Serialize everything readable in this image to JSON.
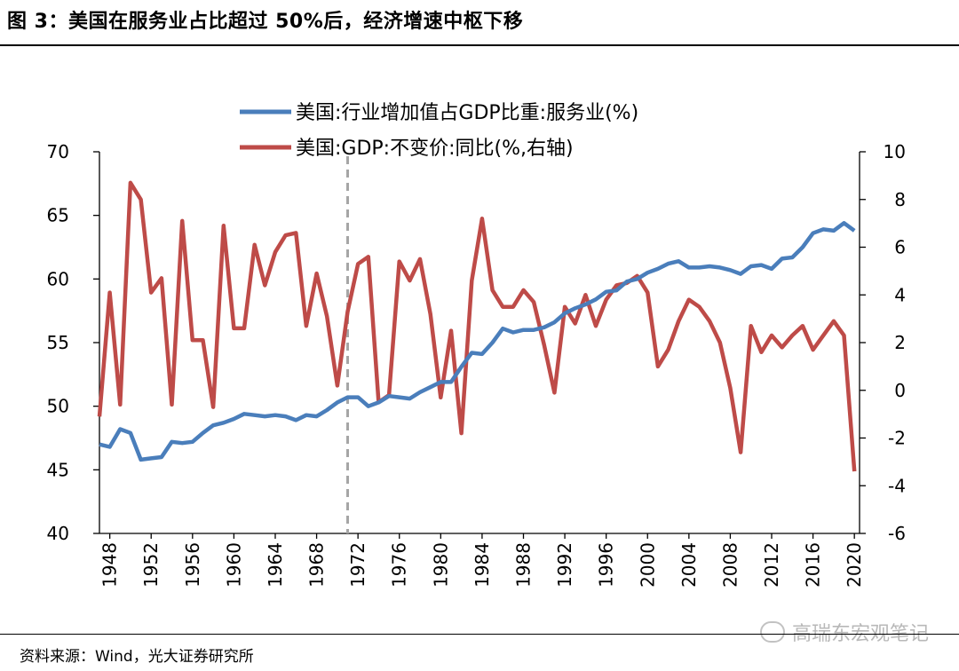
{
  "title": "图 3：美国在服务业占比超过 50%后，经济增速中枢下移",
  "source": "资料来源：Wind，光大证券研究所",
  "watermark": "高瑞东宏观笔记",
  "colors": {
    "services": "#4a7ebb",
    "gdp": "#be4b48",
    "marker": "#a6a6a6"
  },
  "chart_data": {
    "type": "line",
    "legend": [
      "美国:行业增加值占GDP比重:服务业(%)",
      "美国:GDP:不变价:同比(%,右轴)"
    ],
    "legend_position": "top",
    "x_ticks": [
      "1948",
      "1952",
      "1956",
      "1960",
      "1964",
      "1968",
      "1972",
      "1976",
      "1980",
      "1984",
      "1988",
      "1992",
      "1996",
      "2000",
      "2004",
      "2008",
      "2012",
      "2016",
      "2020"
    ],
    "y_left": {
      "range": [
        40,
        70
      ],
      "ticks": [
        "40",
        "45",
        "50",
        "55",
        "60",
        "65",
        "70"
      ]
    },
    "y_right": {
      "range": [
        -6,
        10
      ],
      "ticks": [
        "-6",
        "-4",
        "-2",
        "0",
        "2",
        "4",
        "6",
        "8",
        "10"
      ]
    },
    "reference_line_year": 1971,
    "x": [
      1947,
      1948,
      1949,
      1950,
      1951,
      1952,
      1953,
      1954,
      1955,
      1956,
      1957,
      1958,
      1959,
      1960,
      1961,
      1962,
      1963,
      1964,
      1965,
      1966,
      1967,
      1968,
      1969,
      1970,
      1971,
      1972,
      1973,
      1974,
      1975,
      1976,
      1977,
      1978,
      1979,
      1980,
      1981,
      1982,
      1983,
      1984,
      1985,
      1986,
      1987,
      1988,
      1989,
      1990,
      1991,
      1992,
      1993,
      1994,
      1995,
      1996,
      1997,
      1998,
      1999,
      2000,
      2001,
      2002,
      2003,
      2004,
      2005,
      2006,
      2007,
      2008,
      2009,
      2010,
      2011,
      2012,
      2013,
      2014,
      2015,
      2016,
      2017,
      2018,
      2019,
      2020
    ],
    "series": [
      {
        "name": "美国:行业增加值占GDP比重:服务业(%)",
        "axis": "left",
        "values": [
          47.0,
          46.8,
          48.2,
          47.9,
          45.8,
          45.9,
          46.0,
          47.2,
          47.1,
          47.2,
          47.9,
          48.5,
          48.7,
          49.0,
          49.4,
          49.3,
          49.2,
          49.3,
          49.2,
          48.9,
          49.3,
          49.2,
          49.7,
          50.3,
          50.7,
          50.7,
          50.0,
          50.3,
          50.8,
          50.7,
          50.6,
          51.1,
          51.5,
          51.9,
          51.9,
          53.1,
          54.2,
          54.1,
          55.0,
          56.1,
          55.8,
          56.0,
          56.0,
          56.2,
          56.6,
          57.3,
          57.7,
          58.0,
          58.4,
          59.0,
          59.1,
          59.8,
          60.0,
          60.5,
          60.8,
          61.2,
          61.4,
          60.9,
          60.9,
          61.0,
          60.9,
          60.7,
          60.4,
          61.0,
          61.1,
          60.8,
          61.6,
          61.7,
          62.5,
          63.6,
          63.9,
          63.8,
          64.4,
          63.8
        ]
      },
      {
        "name": "美国:GDP:不变价:同比(%,右轴)",
        "axis": "right",
        "values": [
          -1.1,
          4.1,
          -0.6,
          8.7,
          8.0,
          4.1,
          4.7,
          -0.6,
          7.1,
          2.1,
          2.1,
          -0.7,
          6.9,
          2.6,
          2.6,
          6.1,
          4.4,
          5.8,
          6.5,
          6.6,
          2.7,
          4.9,
          3.1,
          0.2,
          3.3,
          5.3,
          5.6,
          -0.5,
          -0.2,
          5.4,
          4.6,
          5.5,
          3.2,
          -0.3,
          2.5,
          -1.8,
          4.6,
          7.2,
          4.2,
          3.5,
          3.5,
          4.2,
          3.7,
          1.9,
          -0.1,
          3.5,
          2.8,
          4.0,
          2.7,
          3.8,
          4.4,
          4.5,
          4.8,
          4.1,
          1.0,
          1.7,
          2.9,
          3.8,
          3.5,
          2.9,
          2.0,
          0.1,
          -2.6,
          2.7,
          1.6,
          2.3,
          1.8,
          2.3,
          2.7,
          1.7,
          2.3,
          2.9,
          2.3,
          -3.4
        ]
      }
    ]
  }
}
